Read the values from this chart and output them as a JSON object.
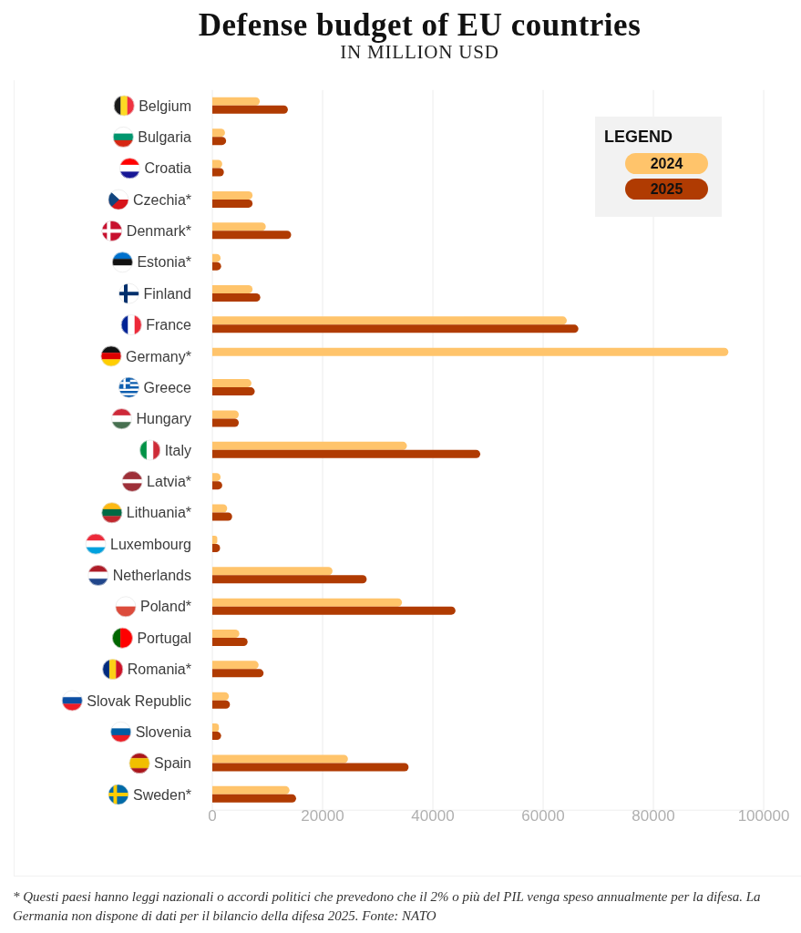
{
  "chart_data": {
    "type": "bar",
    "orientation": "horizontal",
    "title": "Defense budget of EU countries",
    "subtitle": "IN MILLION USD",
    "categories": [
      "Belgium",
      "Bulgaria",
      "Croatia",
      "Czechia*",
      "Denmark*",
      "Estonia*",
      "Finland",
      "France",
      "Germany*",
      "Greece",
      "Hungary",
      "Italy",
      "Latvia*",
      "Lithuania*",
      "Luxembourg",
      "Netherlands",
      "Poland*",
      "Portugal",
      "Romania*",
      "Slovak Republic",
      "Slovenia",
      "Spain",
      "Sweden*"
    ],
    "series": [
      {
        "name": "2024",
        "color": "#ffc46b",
        "values": [
          8600,
          2300,
          1800,
          7300,
          9700,
          1500,
          7300,
          64300,
          93600,
          7100,
          4800,
          35300,
          1500,
          2700,
          900,
          21800,
          34400,
          4900,
          8400,
          3000,
          1200,
          24600,
          14000
        ]
      },
      {
        "name": "2025",
        "color": "#b03b02",
        "values": [
          13700,
          2500,
          2100,
          7300,
          14300,
          1600,
          8700,
          66400,
          null,
          7700,
          4800,
          48600,
          1800,
          3600,
          1400,
          28000,
          44100,
          6400,
          9300,
          3200,
          1600,
          35600,
          15200
        ]
      }
    ],
    "xlim": [
      0,
      100000
    ],
    "xticks": [
      0,
      20000,
      40000,
      60000,
      80000,
      100000
    ],
    "grid": "x",
    "legend": "top right",
    "legend_title": "LEGEND",
    "annotations": [
      "* Questi paesi hanno leggi nazionali o accordi politici che prevedono che il 2% o più del PIL venga speso annualmente per la difesa. La Germania non dispone di dati per il bilancio della difesa 2025. Fonte: NATO"
    ]
  }
}
